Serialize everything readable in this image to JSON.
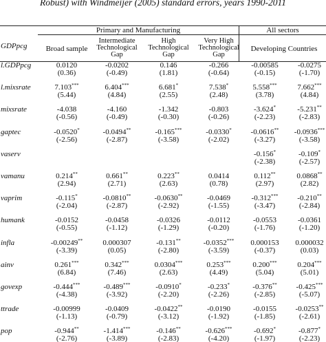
{
  "title": "Robust) with Windmeijer (2005) standard errors, years 1990-2011",
  "header": {
    "group_1": "Primary and Manufacturing",
    "group_2": "All sectors",
    "dependent": "GDPpcg",
    "columns": [
      "Broad sample",
      "Intermediate Technological Gap",
      "High Technological Gap",
      "Very High Technological Gap"
    ],
    "group_2_column": "Developing Countries"
  },
  "rows": [
    {
      "variable": "l.GDPpcg",
      "coefficients": [
        {
          "value": "0.0120"
        },
        {
          "value": "-0.0202"
        },
        {
          "value": "0.146"
        },
        {
          "value": "-0.266"
        },
        {
          "value": "-0.00585"
        },
        {
          "value": "-0.0275"
        }
      ],
      "t_stats": [
        "(0.36)",
        "(-0.49)",
        "(1.81)",
        "(-0.64)",
        "(-0.15)",
        "(-1.70)"
      ]
    },
    {
      "variable": "l.mixsrate",
      "coefficients": [
        {
          "value": "7.103",
          "stars": "***"
        },
        {
          "value": "6.404",
          "stars": "***"
        },
        {
          "value": "6.681",
          "stars": "*"
        },
        {
          "value": "7.538",
          "stars": "*"
        },
        {
          "value": "5.558",
          "stars": "***"
        },
        {
          "value": "7.662",
          "stars": "***"
        }
      ],
      "t_stats": [
        "(5.44)",
        "(4.84)",
        "(2.55)",
        "(2.48)",
        "(3.78)",
        "(4.84)"
      ]
    },
    {
      "variable": "mixsrate",
      "coefficients": [
        {
          "value": "-4.038"
        },
        {
          "value": "-4.160"
        },
        {
          "value": "-1.342"
        },
        {
          "value": "-0.803"
        },
        {
          "value": "-3.624",
          "stars": "*"
        },
        {
          "value": "-5.231",
          "stars": "**"
        }
      ],
      "t_stats": [
        "(-0.56)",
        "(-0.49)",
        "(-0.30)",
        "(-0.26)",
        "(-2.23)",
        "(-2.83)"
      ]
    },
    {
      "variable": "gaptec",
      "coefficients": [
        {
          "value": "-0.0520",
          "stars": "*"
        },
        {
          "value": "-0.0494",
          "stars": "**"
        },
        {
          "value": "-0.165",
          "stars": "***"
        },
        {
          "value": "-0.0330",
          "stars": "*"
        },
        {
          "value": "-0.0616",
          "stars": "**"
        },
        {
          "value": "-0.0936",
          "stars": "***"
        }
      ],
      "t_stats": [
        "(-2.56)",
        "(-2.87)",
        "(-3.58)",
        "(-2.02)",
        "(-3.27)",
        "(-3.58)"
      ]
    },
    {
      "variable": "vaserv",
      "coefficients": [
        null,
        null,
        null,
        null,
        {
          "value": "-0.156",
          "stars": "*"
        },
        {
          "value": "-0.109",
          "stars": "*"
        }
      ],
      "t_stats": [
        null,
        null,
        null,
        null,
        "(-2.38)",
        "(-2.57)"
      ]
    },
    {
      "variable": "vamanu",
      "coefficients": [
        {
          "value": "0.214",
          "stars": "**"
        },
        {
          "value": "0.661",
          "stars": "**"
        },
        {
          "value": "0.223",
          "stars": "**"
        },
        {
          "value": "0.0414"
        },
        {
          "value": "0.112",
          "stars": "**"
        },
        {
          "value": "0.0868",
          "stars": "**"
        }
      ],
      "t_stats": [
        "(2.94)",
        "(2.71)",
        "(2.63)",
        "(0.78)",
        "(2.97)",
        "(2.82)"
      ]
    },
    {
      "variable": "vaprim",
      "coefficients": [
        {
          "value": "-0.115",
          "stars": "*"
        },
        {
          "value": "-0.0810",
          "stars": "**"
        },
        {
          "value": "-0.0630",
          "stars": "**"
        },
        {
          "value": "-0.0469"
        },
        {
          "value": "-0.312",
          "stars": "***"
        },
        {
          "value": "-0.210",
          "stars": "**"
        }
      ],
      "t_stats": [
        "(-2.04)",
        "(-2.87)",
        "(-2.92)",
        "(-1.55)",
        "(-3.47)",
        "(-2.84)"
      ]
    },
    {
      "variable": "humank",
      "coefficients": [
        {
          "value": "-0.0152"
        },
        {
          "value": "-0.0458"
        },
        {
          "value": "-0.0326"
        },
        {
          "value": "-0.0112"
        },
        {
          "value": "-0.0553"
        },
        {
          "value": "-0.0361"
        }
      ],
      "t_stats": [
        "(-0.55)",
        "(-1.12)",
        "(-1.29)",
        "(-0.20)",
        "(-1.76)",
        "(-1.20)"
      ]
    },
    {
      "variable": "infla",
      "coefficients": [
        {
          "value": "-0.00249",
          "stars": "**"
        },
        {
          "value": "0.000307"
        },
        {
          "value": "-0.131",
          "stars": "**"
        },
        {
          "value": "-0.0352",
          "stars": "***"
        },
        {
          "value": "0.000153"
        },
        {
          "value": "0.000032"
        }
      ],
      "t_stats": [
        "(-3.39)",
        "(0.05)",
        "(-2.80)",
        "(-3.59)",
        "(-0.37)",
        "(0.03)"
      ]
    },
    {
      "variable": "ainv",
      "coefficients": [
        {
          "value": "0.261",
          "stars": "***"
        },
        {
          "value": "0.342",
          "stars": "***"
        },
        {
          "value": "0.0304",
          "stars": "***"
        },
        {
          "value": "0.253",
          "stars": "***"
        },
        {
          "value": "0.200",
          "stars": "***"
        },
        {
          "value": "0.204",
          "stars": "***"
        }
      ],
      "t_stats": [
        "(6.84)",
        "(7.46)",
        "(2.63)",
        "(4.49)",
        "(5.04)",
        "(5.01)"
      ]
    },
    {
      "variable": "govexp",
      "coefficients": [
        {
          "value": "-0.444",
          "stars": "***"
        },
        {
          "value": "-0.489",
          "stars": "***"
        },
        {
          "value": "-0.0910",
          "stars": "*"
        },
        {
          "value": "-0.233",
          "stars": "*"
        },
        {
          "value": "-0.376",
          "stars": "**"
        },
        {
          "value": "-0.425",
          "stars": "***"
        }
      ],
      "t_stats": [
        "(-4.38)",
        "(-3.92)",
        "(-2.20)",
        "(-2.26)",
        "(-2.85)",
        "(-5.07)"
      ]
    },
    {
      "variable": "ttrade",
      "coefficients": [
        {
          "value": "-0.00999"
        },
        {
          "value": "-0.0409"
        },
        {
          "value": "-0.0422",
          "stars": "**"
        },
        {
          "value": "-0.0190"
        },
        {
          "value": "-0.0155"
        },
        {
          "value": "-0.0253",
          "stars": "**"
        }
      ],
      "t_stats": [
        "(-1.13)",
        "(-0.79)",
        "(-3.12)",
        "(-1.92)",
        "(-1.85)",
        "(-2.61)"
      ]
    },
    {
      "variable": "pop",
      "coefficients": [
        {
          "value": "-0.944",
          "stars": "**"
        },
        {
          "value": "-1.414",
          "stars": "***"
        },
        {
          "value": "-0.146",
          "stars": "**"
        },
        {
          "value": "-0.626",
          "stars": "***"
        },
        {
          "value": "-0.692",
          "stars": "*"
        },
        {
          "value": "-0.877",
          "stars": "*"
        }
      ],
      "t_stats": [
        "(-2.76)",
        "(-3.89)",
        "(-2.83)",
        "(-4.20)",
        "(-1.97)",
        "(-2.23)"
      ]
    }
  ]
}
